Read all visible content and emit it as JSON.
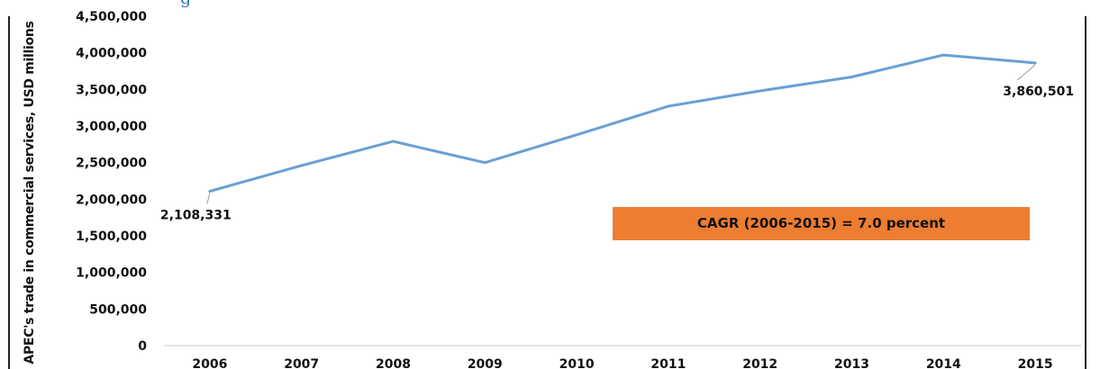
{
  "chart_data": {
    "type": "line",
    "title": "",
    "xlabel": "",
    "ylabel": "APEC's trade in commercial services, USD millions",
    "categories": [
      "2006",
      "2007",
      "2008",
      "2009",
      "2010",
      "2011",
      "2012",
      "2013",
      "2014",
      "2015"
    ],
    "series": [
      {
        "values": [
          2108331,
          2460000,
          2790000,
          2500000,
          2880000,
          3270000,
          3480000,
          3670000,
          3970000,
          3860501
        ]
      }
    ],
    "data_labels": [
      {
        "index": 0,
        "text": "2,108,331"
      },
      {
        "index": 9,
        "text": "3,860,501"
      }
    ],
    "ylim": [
      0,
      4500000
    ],
    "yticks": [
      "0",
      "500,000",
      "1,000,000",
      "1,500,000",
      "2,000,000",
      "2,500,000",
      "3,000,000",
      "3,500,000",
      "4,000,000",
      "4,500,000"
    ],
    "grid": false,
    "legend": "none",
    "annotation": "CAGR (2006-2015) = 7.0 percent",
    "title_partial": "g",
    "colors": {
      "line": "#6a9fd4",
      "annotation_bg": "#ed7d31"
    }
  }
}
